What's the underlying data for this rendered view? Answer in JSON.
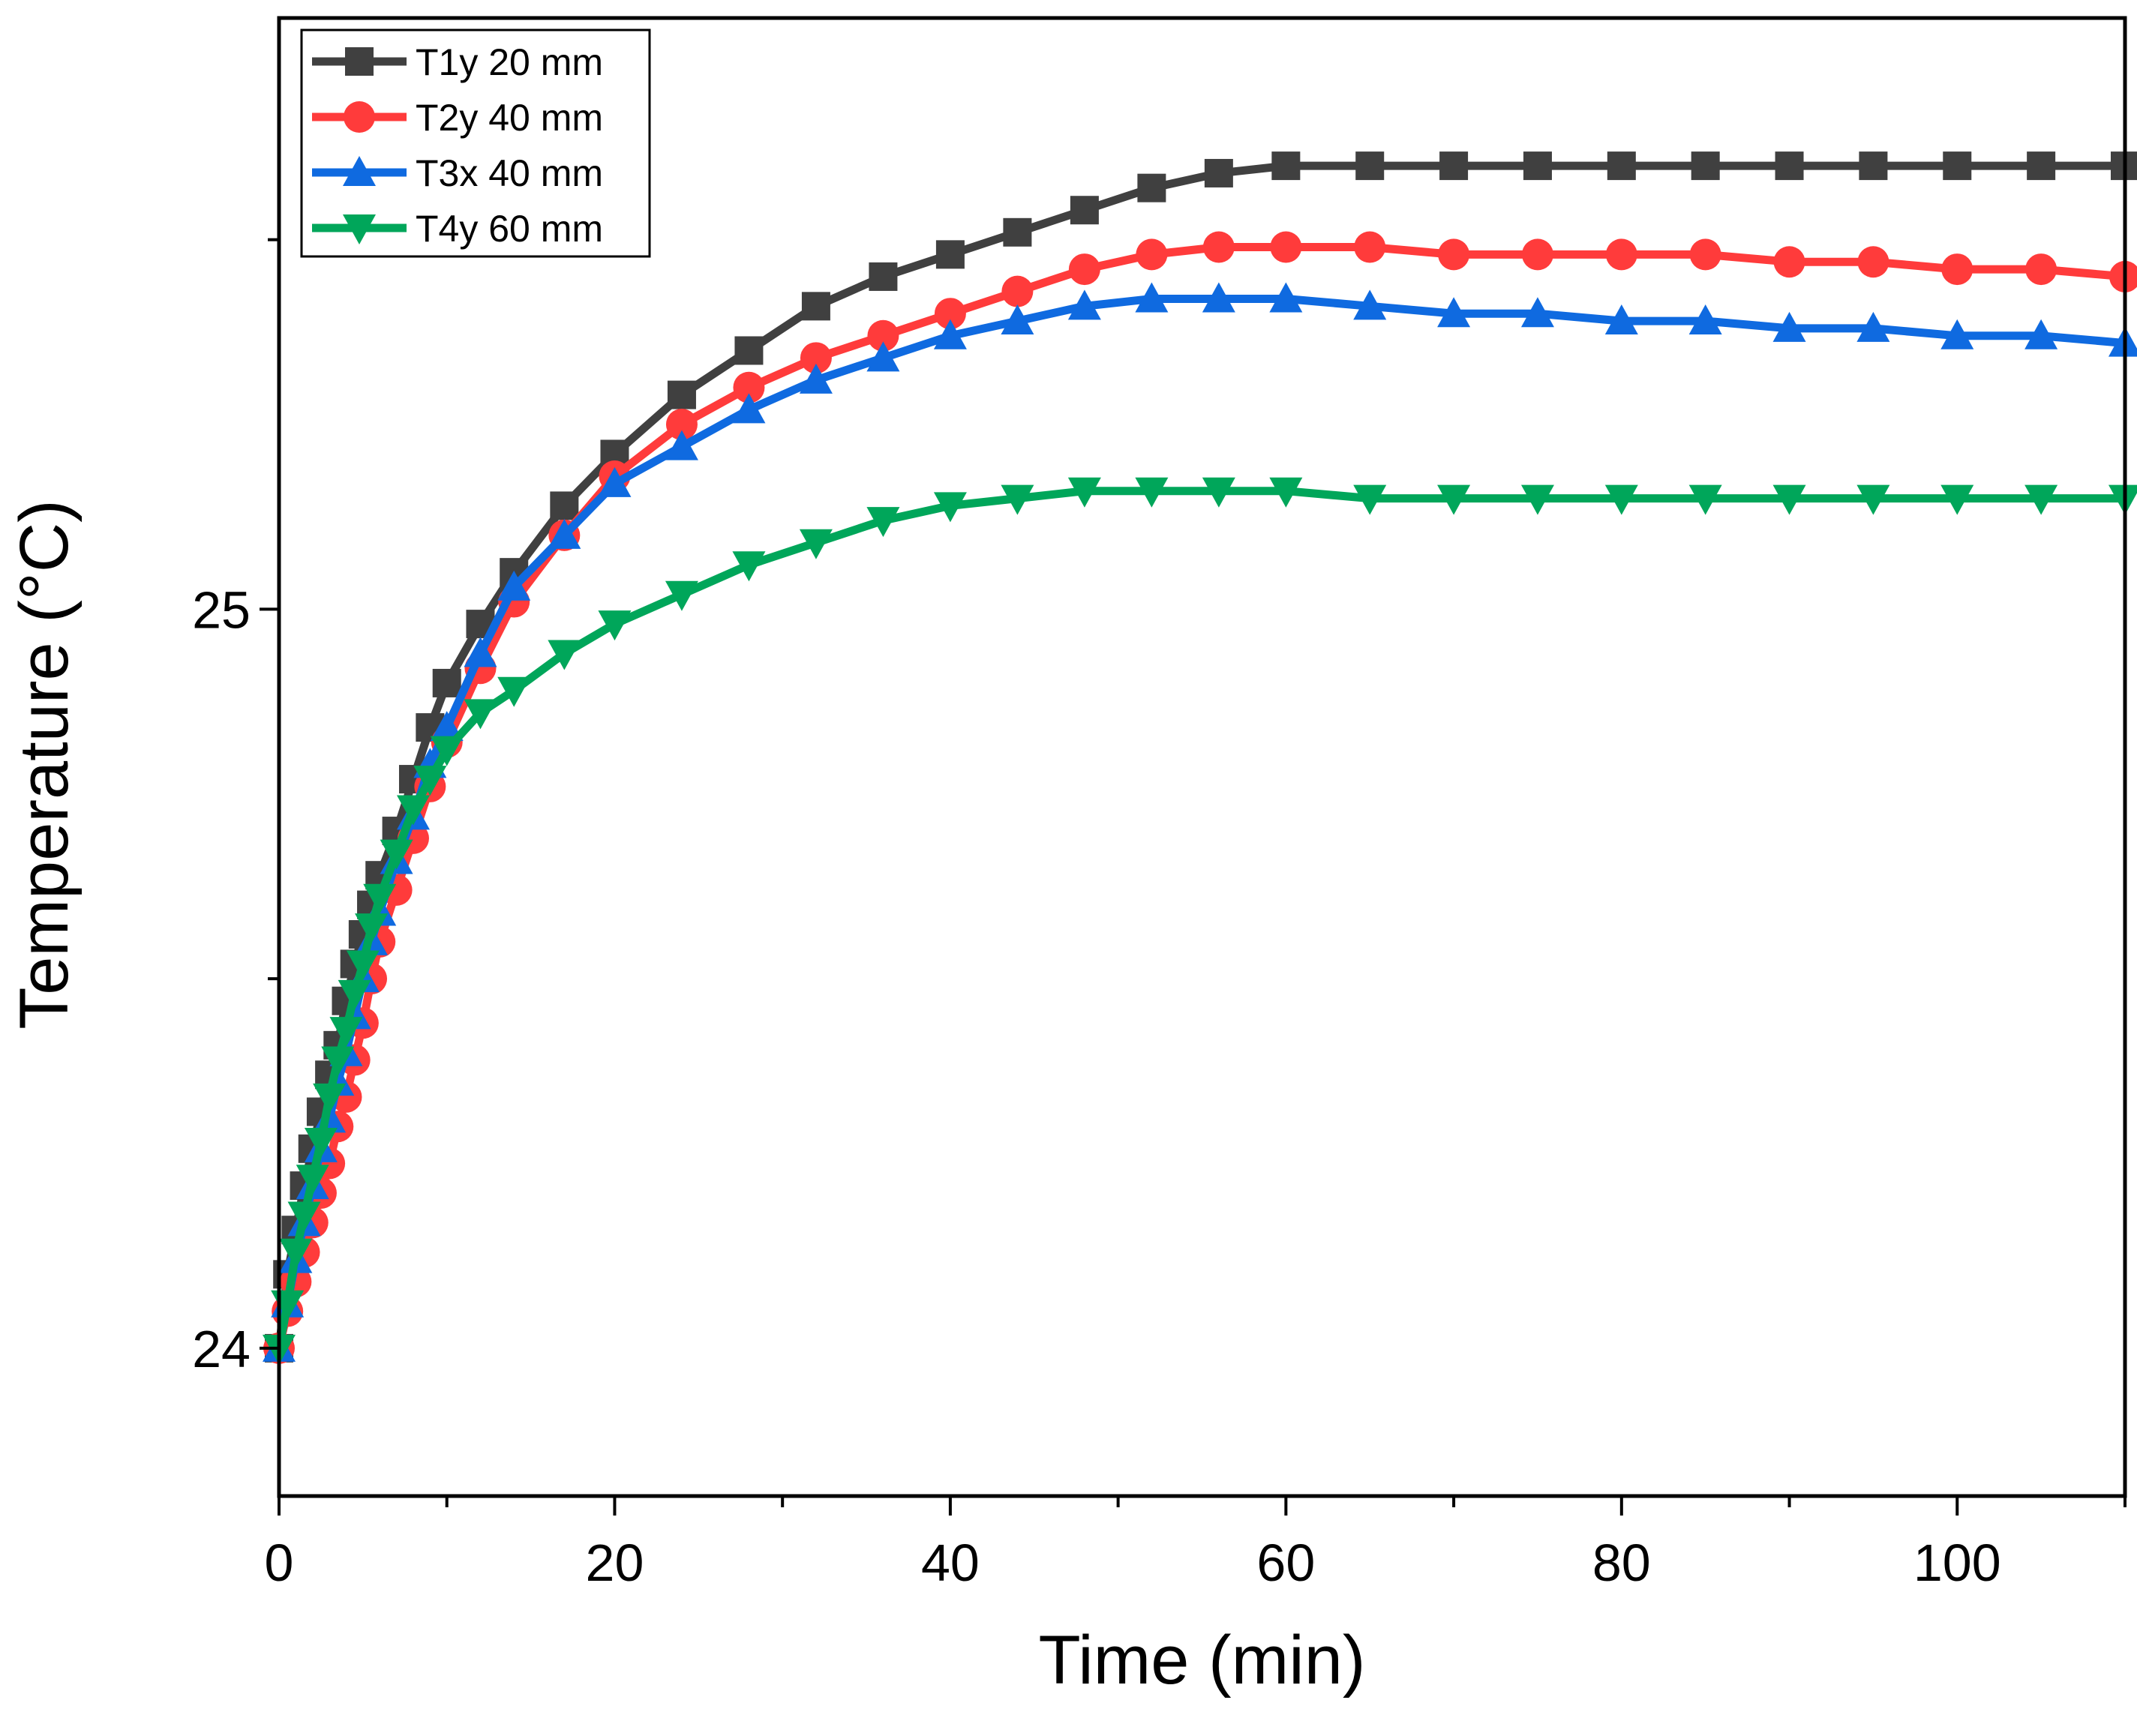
{
  "chart_data": {
    "type": "line",
    "title": "",
    "xlabel": "Time (min)",
    "ylabel": "Temperature (°C)",
    "xlim": [
      0,
      110
    ],
    "ylim": [
      23.8,
      25.8
    ],
    "xticks": [
      0,
      20,
      40,
      60,
      80,
      100
    ],
    "yticks": [
      24,
      25
    ],
    "grid": false,
    "legend_position": "top-left",
    "x": [
      0,
      0.5,
      1,
      1.5,
      2,
      2.5,
      3,
      3.5,
      4,
      4.5,
      5,
      5.5,
      6,
      7,
      8,
      9,
      10,
      12,
      14,
      17,
      20,
      24,
      28,
      32,
      36,
      40,
      44,
      48,
      52,
      56,
      60,
      65,
      70,
      75,
      80,
      85,
      90,
      95,
      100,
      105,
      110
    ],
    "series": [
      {
        "name": "T1y 20 mm",
        "color": "#404040",
        "marker": "square",
        "values": [
          24.0,
          24.1,
          24.16,
          24.22,
          24.27,
          24.32,
          24.37,
          24.41,
          24.47,
          24.52,
          24.56,
          24.6,
          24.64,
          24.7,
          24.77,
          24.84,
          24.9,
          24.98,
          25.05,
          25.14,
          25.21,
          25.29,
          25.35,
          25.41,
          25.45,
          25.48,
          25.51,
          25.54,
          25.57,
          25.59,
          25.6,
          25.6,
          25.6,
          25.6,
          25.6,
          25.6,
          25.6,
          25.6,
          25.6,
          25.6,
          25.6
        ]
      },
      {
        "name": "T2y 40 mm",
        "color": "#FF3B3B",
        "marker": "circle",
        "values": [
          24.0,
          24.05,
          24.09,
          24.13,
          24.17,
          24.21,
          24.25,
          24.3,
          24.34,
          24.39,
          24.44,
          24.5,
          24.55,
          24.62,
          24.69,
          24.76,
          24.82,
          24.92,
          25.01,
          25.1,
          25.18,
          25.25,
          25.3,
          25.34,
          25.37,
          25.4,
          25.43,
          25.46,
          25.48,
          25.49,
          25.49,
          25.49,
          25.48,
          25.48,
          25.48,
          25.48,
          25.47,
          25.47,
          25.46,
          25.46,
          25.45
        ]
      },
      {
        "name": "T3x 40 mm",
        "color": "#0F6AE0",
        "marker": "triangle-up",
        "values": [
          24.0,
          24.06,
          24.12,
          24.17,
          24.22,
          24.27,
          24.31,
          24.36,
          24.4,
          24.45,
          24.5,
          24.55,
          24.59,
          24.66,
          24.72,
          24.79,
          24.84,
          24.94,
          25.03,
          25.1,
          25.17,
          25.22,
          25.27,
          25.31,
          25.34,
          25.37,
          25.39,
          25.41,
          25.42,
          25.42,
          25.42,
          25.41,
          25.4,
          25.4,
          25.39,
          25.39,
          25.38,
          25.38,
          25.37,
          25.37,
          25.36
        ]
      },
      {
        "name": "T4y 60 mm",
        "color": "#00A65A",
        "marker": "triangle-down",
        "values": [
          24.0,
          24.06,
          24.13,
          24.18,
          24.23,
          24.28,
          24.34,
          24.39,
          24.43,
          24.48,
          24.52,
          24.57,
          24.61,
          24.67,
          24.73,
          24.77,
          24.81,
          24.86,
          24.89,
          24.94,
          24.98,
          25.02,
          25.06,
          25.09,
          25.12,
          25.14,
          25.15,
          25.16,
          25.16,
          25.16,
          25.16,
          25.15,
          25.15,
          25.15,
          25.15,
          25.15,
          25.15,
          25.15,
          25.15,
          25.15,
          25.15
        ]
      }
    ]
  }
}
